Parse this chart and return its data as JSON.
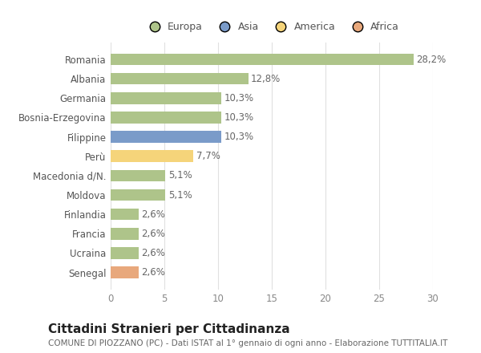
{
  "categories": [
    "Romania",
    "Albania",
    "Germania",
    "Bosnia-Erzegovina",
    "Filippine",
    "Perù",
    "Macedonia d/N.",
    "Moldova",
    "Finlandia",
    "Francia",
    "Ucraina",
    "Senegal"
  ],
  "values": [
    28.2,
    12.8,
    10.3,
    10.3,
    10.3,
    7.7,
    5.1,
    5.1,
    2.6,
    2.6,
    2.6,
    2.6
  ],
  "labels": [
    "28,2%",
    "12,8%",
    "10,3%",
    "10,3%",
    "10,3%",
    "7,7%",
    "5,1%",
    "5,1%",
    "2,6%",
    "2,6%",
    "2,6%",
    "2,6%"
  ],
  "bar_colors": [
    "#aec48a",
    "#aec48a",
    "#aec48a",
    "#aec48a",
    "#7a9bc9",
    "#f5d47a",
    "#aec48a",
    "#aec48a",
    "#aec48a",
    "#aec48a",
    "#aec48a",
    "#e8a87c"
  ],
  "legend_labels": [
    "Europa",
    "Asia",
    "America",
    "Africa"
  ],
  "legend_colors": [
    "#aec48a",
    "#7a9bc9",
    "#f5d47a",
    "#e8a87c"
  ],
  "title": "Cittadini Stranieri per Cittadinanza",
  "subtitle": "COMUNE DI PIOZZANO (PC) - Dati ISTAT al 1° gennaio di ogni anno - Elaborazione TUTTITALIA.IT",
  "xlim": [
    0,
    30
  ],
  "xticks": [
    0,
    5,
    10,
    15,
    20,
    25,
    30
  ],
  "background_color": "#ffffff",
  "grid_color": "#e0e0e0",
  "title_fontsize": 11,
  "subtitle_fontsize": 7.5,
  "tick_fontsize": 8.5,
  "label_fontsize": 8.5
}
